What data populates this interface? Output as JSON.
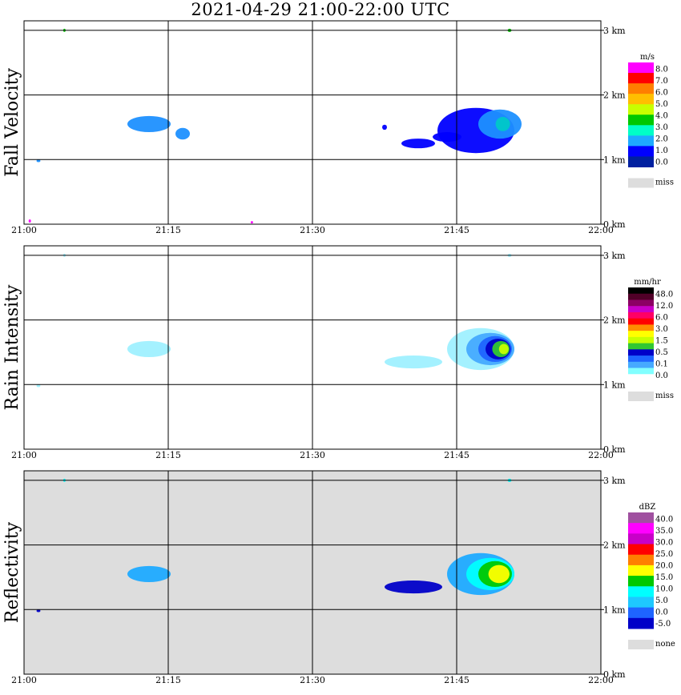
{
  "title": "2021-04-29   21:00-22:00 UTC",
  "x_ticks": [
    "21:00",
    "21:15",
    "21:30",
    "21:45",
    "22:00"
  ],
  "y_ticks": [
    "0 km",
    "1 km",
    "2 km",
    "3 km"
  ],
  "chart_data": [
    {
      "type": "heatmap",
      "title": "Fall Velocity",
      "xlabel": "",
      "ylabel": "Fall Velocity",
      "x_range": [
        "21:00",
        "22:00"
      ],
      "y_range_km": [
        0,
        3.2
      ],
      "grid": true,
      "colorbar": {
        "unit": "m/s",
        "levels": [
          "8.0",
          "7.0",
          "6.0",
          "5.0",
          "4.0",
          "3.0",
          "2.0",
          "1.0",
          "0.0"
        ],
        "colors": [
          "#ff00ff",
          "#ff0000",
          "#ff7f00",
          "#ffbf00",
          "#c8ff00",
          "#00c800",
          "#00ffc8",
          "#1eaaff",
          "#0000ff",
          "#0020a0"
        ],
        "missing_label": "miss",
        "missing_color": "#dddddd"
      },
      "background": "#ffffff",
      "echoes": [
        {
          "t_min": 13.0,
          "h_km": 1.55,
          "dt": 4.5,
          "dh": 0.25,
          "color": "#1e90ff"
        },
        {
          "t_min": 16.5,
          "h_km": 1.4,
          "dt": 1.5,
          "dh": 0.18,
          "color": "#1e90ff"
        },
        {
          "t_min": 1.5,
          "h_km": 0.98,
          "dt": 0.4,
          "dh": 0.04,
          "color": "#1e90ff"
        },
        {
          "t_min": 37.5,
          "h_km": 1.5,
          "dt": 0.5,
          "dh": 0.08,
          "color": "#0000ff"
        },
        {
          "t_min": 41.0,
          "h_km": 1.25,
          "dt": 3.5,
          "dh": 0.15,
          "color": "#0000ff"
        },
        {
          "t_min": 44.0,
          "h_km": 1.35,
          "dt": 3.0,
          "dh": 0.15,
          "color": "#0000ff"
        },
        {
          "t_min": 47.0,
          "h_km": 1.45,
          "dt": 8.0,
          "dh": 0.7,
          "color": "#0000ff"
        },
        {
          "t_min": 49.5,
          "h_km": 1.55,
          "dt": 4.5,
          "dh": 0.45,
          "color": "#1e90ff"
        },
        {
          "t_min": 49.8,
          "h_km": 1.55,
          "dt": 1.5,
          "dh": 0.22,
          "color": "#00c8c8"
        },
        {
          "t_min": 4.2,
          "h_km": 3.0,
          "dt": 0.2,
          "dh": 0.05,
          "color": "#00c800"
        },
        {
          "t_min": 50.5,
          "h_km": 3.0,
          "dt": 0.4,
          "dh": 0.05,
          "color": "#00c800"
        },
        {
          "t_min": 0.6,
          "h_km": 0.05,
          "dt": 0.2,
          "dh": 0.05,
          "color": "#ff00ff"
        },
        {
          "t_min": 23.7,
          "h_km": 0.03,
          "dt": 0.15,
          "dh": 0.03,
          "color": "#ff00ff"
        }
      ]
    },
    {
      "type": "heatmap",
      "title": "Rain Intensity",
      "xlabel": "",
      "ylabel": "Rain Intensity",
      "x_range": [
        "21:00",
        "22:00"
      ],
      "y_range_km": [
        0,
        3.2
      ],
      "grid": true,
      "colorbar": {
        "unit": "mm/hr",
        "levels": [
          "48.0",
          "12.0",
          "6.0",
          "3.0",
          "1.5",
          "0.5",
          "0.1",
          "0.0"
        ],
        "colors": [
          "#000000",
          "#500028",
          "#8c0064",
          "#c800c8",
          "#ff0064",
          "#ff0000",
          "#ff8c00",
          "#ffff00",
          "#c8ff00",
          "#32c832",
          "#0000c8",
          "#1e64ff",
          "#46aaff",
          "#82ffff",
          "#ffffff"
        ],
        "missing_label": "miss",
        "missing_color": "#dddddd"
      },
      "background": "#ffffff",
      "echoes": [
        {
          "t_min": 13.0,
          "h_km": 1.55,
          "dt": 4.5,
          "dh": 0.25,
          "color": "#9ff0ff"
        },
        {
          "t_min": 1.5,
          "h_km": 0.98,
          "dt": 0.4,
          "dh": 0.04,
          "color": "#9ff0ff"
        },
        {
          "t_min": 40.5,
          "h_km": 1.35,
          "dt": 6.0,
          "dh": 0.2,
          "color": "#9ff0ff"
        },
        {
          "t_min": 47.5,
          "h_km": 1.55,
          "dt": 7.0,
          "dh": 0.65,
          "color": "#9ff0ff"
        },
        {
          "t_min": 48.5,
          "h_km": 1.55,
          "dt": 5.0,
          "dh": 0.5,
          "color": "#46aaff"
        },
        {
          "t_min": 49.0,
          "h_km": 1.55,
          "dt": 3.5,
          "dh": 0.4,
          "color": "#1e64ff"
        },
        {
          "t_min": 49.3,
          "h_km": 1.55,
          "dt": 2.6,
          "dh": 0.32,
          "color": "#0000c8"
        },
        {
          "t_min": 49.6,
          "h_km": 1.55,
          "dt": 1.8,
          "dh": 0.25,
          "color": "#32c832"
        },
        {
          "t_min": 49.9,
          "h_km": 1.55,
          "dt": 1.0,
          "dh": 0.16,
          "color": "#c8ff00"
        },
        {
          "t_min": 4.2,
          "h_km": 3.0,
          "dt": 0.2,
          "dh": 0.05,
          "color": "#9ff0ff"
        },
        {
          "t_min": 50.5,
          "h_km": 3.0,
          "dt": 0.4,
          "dh": 0.05,
          "color": "#9ff0ff"
        }
      ]
    },
    {
      "type": "heatmap",
      "title": "Reflectivity",
      "xlabel": "",
      "ylabel": "Reflectivity",
      "x_range": [
        "21:00",
        "22:00"
      ],
      "y_range_km": [
        0,
        3.2
      ],
      "grid": true,
      "colorbar": {
        "unit": "dBZ",
        "levels": [
          "40.0",
          "35.0",
          "30.0",
          "25.0",
          "20.0",
          "15.0",
          "10.0",
          "5.0",
          "0.0",
          "-5.0"
        ],
        "colors": [
          "#a050a0",
          "#ff00ff",
          "#c800c8",
          "#ff0000",
          "#ff7f00",
          "#ffff00",
          "#00c800",
          "#00ffff",
          "#1ec8ff",
          "#1e64ff",
          "#0000c8"
        ],
        "missing_label": "none",
        "missing_color": "#dddddd"
      },
      "background": "#dddddd",
      "echoes": [
        {
          "t_min": 13.0,
          "h_km": 1.55,
          "dt": 4.5,
          "dh": 0.25,
          "color": "#1eaaff"
        },
        {
          "t_min": 1.5,
          "h_km": 0.98,
          "dt": 0.4,
          "dh": 0.04,
          "color": "#0000c8"
        },
        {
          "t_min": 40.5,
          "h_km": 1.35,
          "dt": 6.0,
          "dh": 0.2,
          "color": "#0000c8"
        },
        {
          "t_min": 47.5,
          "h_km": 1.55,
          "dt": 7.0,
          "dh": 0.65,
          "color": "#1eaaff"
        },
        {
          "t_min": 48.5,
          "h_km": 1.55,
          "dt": 5.0,
          "dh": 0.5,
          "color": "#00ffff"
        },
        {
          "t_min": 49.0,
          "h_km": 1.55,
          "dt": 3.5,
          "dh": 0.4,
          "color": "#00c800"
        },
        {
          "t_min": 49.4,
          "h_km": 1.55,
          "dt": 2.2,
          "dh": 0.28,
          "color": "#ffff00"
        },
        {
          "t_min": 4.2,
          "h_km": 3.0,
          "dt": 0.2,
          "dh": 0.05,
          "color": "#00ffff"
        },
        {
          "t_min": 50.5,
          "h_km": 3.0,
          "dt": 0.4,
          "dh": 0.05,
          "color": "#00ffff"
        }
      ]
    }
  ]
}
